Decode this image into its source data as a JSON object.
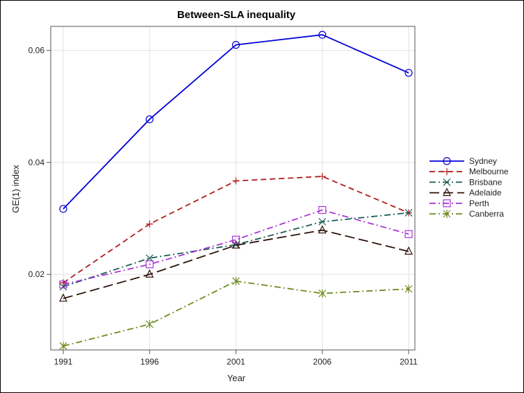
{
  "chart_data": {
    "type": "line",
    "title": "Between-SLA inequality",
    "xlabel": "Year",
    "ylabel": "GE(1) index",
    "x": [
      1991,
      1996,
      2001,
      2006,
      2011
    ],
    "xlim": [
      1991,
      2011
    ],
    "ylim": [
      0.0065,
      0.0643
    ],
    "x_ticks": [
      "1991",
      "1996",
      "2001",
      "2006",
      "2011"
    ],
    "y_ticks": [
      0.02,
      0.04,
      0.06
    ],
    "y_tick_labels": [
      "0.02",
      "0.04",
      "0.06"
    ],
    "grid": true,
    "legend_position": "right",
    "series": [
      {
        "name": "Sydney",
        "color": "#0000d6",
        "dash": "solid",
        "marker": "circle",
        "values": [
          0.0317,
          0.0477,
          0.061,
          0.0628,
          0.056
        ]
      },
      {
        "name": "Melbourne",
        "color": "#b01c1c",
        "dash": "dashed",
        "marker": "plus",
        "values": [
          0.0185,
          0.029,
          0.0367,
          0.0375,
          0.031
        ]
      },
      {
        "name": "Brisbane",
        "color": "#1a5c52",
        "dash": "dashdot",
        "marker": "x",
        "values": [
          0.0178,
          0.0229,
          0.0253,
          0.0294,
          0.031
        ]
      },
      {
        "name": "Adelaide",
        "color": "#2a1208",
        "dash": "longdash",
        "marker": "triangle",
        "values": [
          0.0157,
          0.02,
          0.0252,
          0.0279,
          0.0241
        ]
      },
      {
        "name": "Perth",
        "color": "#a735d6",
        "dash": "dashdot",
        "marker": "square",
        "values": [
          0.0182,
          0.0218,
          0.0262,
          0.0315,
          0.0272
        ]
      },
      {
        "name": "Canberra",
        "color": "#6e8a1f",
        "dash": "dashdot",
        "marker": "star",
        "values": [
          0.0072,
          0.0111,
          0.0188,
          0.0166,
          0.0174
        ]
      }
    ]
  }
}
